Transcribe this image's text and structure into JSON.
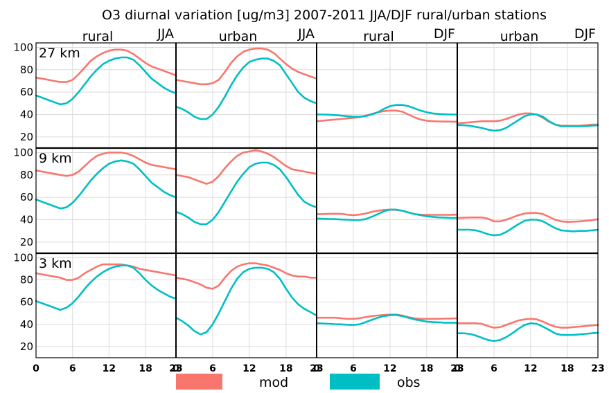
{
  "title": "O3 diurnal variation [ug/m3] 2007-2011 JJA/DJF rural/urban stations",
  "columns": [
    {
      "station": "rural",
      "season": "JJA"
    },
    {
      "station": "urban",
      "season": "JJA"
    },
    {
      "station": "rural",
      "season": "DJF"
    },
    {
      "station": "urban",
      "season": "DJF"
    }
  ],
  "rows": [
    "27 km",
    "9 km",
    "3 km"
  ],
  "colors": {
    "mod": "#f8766d",
    "obs": "#00bfc4"
  },
  "legend": [
    {
      "key": "mod",
      "label": "mod"
    },
    {
      "key": "obs",
      "label": "obs"
    }
  ],
  "chart_data": {
    "type": "line",
    "title": "O3 diurnal variation [ug/m3] 2007-2011 JJA/DJF rural/urban stations",
    "x": [
      0,
      1,
      2,
      3,
      4,
      5,
      6,
      7,
      8,
      9,
      10,
      11,
      12,
      13,
      14,
      15,
      16,
      17,
      18,
      19,
      20,
      21,
      22,
      23
    ],
    "xlim": [
      0,
      23
    ],
    "ylim": [
      10,
      104
    ],
    "x_ticks": [
      0,
      6,
      12,
      18,
      23
    ],
    "y_ticks": [
      20,
      40,
      60,
      80,
      100
    ],
    "grid": true,
    "legend_position": "bottom",
    "panels": [
      {
        "row": "27 km",
        "station": "rural",
        "season": "JJA",
        "mod": [
          73,
          72,
          71,
          70,
          69,
          69,
          71,
          76,
          82,
          88,
          92,
          95,
          97,
          98,
          98,
          97,
          94,
          90,
          86,
          83,
          81,
          79,
          77,
          75
        ],
        "obs": [
          57,
          55,
          53,
          51,
          49,
          50,
          54,
          60,
          67,
          74,
          80,
          85,
          88,
          90,
          91,
          91,
          89,
          84,
          78,
          72,
          68,
          64,
          61,
          59
        ]
      },
      {
        "row": "27 km",
        "station": "urban",
        "season": "JJA",
        "mod": [
          71,
          70,
          69,
          68,
          67,
          67,
          68,
          71,
          78,
          86,
          92,
          96,
          98,
          99,
          99,
          98,
          95,
          90,
          85,
          81,
          78,
          76,
          74,
          72
        ],
        "obs": [
          47,
          45,
          42,
          38,
          36,
          36,
          40,
          47,
          56,
          66,
          75,
          82,
          87,
          89,
          90,
          90,
          88,
          84,
          76,
          68,
          60,
          55,
          52,
          50
        ],
        "obs_label": "obs"
      },
      {
        "row": "27 km",
        "station": "rural",
        "season": "DJF",
        "mod": [
          34,
          34.5,
          35,
          35.5,
          36,
          36.5,
          37,
          37.5,
          39,
          40.5,
          42,
          43,
          43.5,
          43.5,
          42.5,
          40,
          37.5,
          35.5,
          34.5,
          34,
          33.8,
          33.7,
          33.6,
          33.5
        ],
        "obs": [
          40,
          40,
          39.8,
          39.5,
          39,
          38.5,
          38,
          38,
          38.5,
          40,
          42,
          45,
          47.5,
          48.5,
          48.5,
          47.5,
          45.5,
          43.5,
          42,
          41,
          40.5,
          40.2,
          40,
          40
        ]
      },
      {
        "row": "27 km",
        "station": "urban",
        "season": "DJF",
        "mod": [
          32,
          32.5,
          33,
          33.5,
          34,
          34,
          34,
          34.5,
          36,
          38,
          40,
          41,
          41,
          40,
          37,
          33.5,
          31,
          30,
          30,
          30,
          30,
          30.5,
          31,
          31
        ],
        "obs": [
          30.5,
          30.5,
          30,
          29,
          28,
          26.5,
          25.5,
          26,
          28,
          31.5,
          35,
          38.5,
          40,
          40,
          38,
          34,
          31,
          29.5,
          29.5,
          29.5,
          29.5,
          29.5,
          30,
          30.5
        ]
      },
      {
        "row": "9 km",
        "station": "rural",
        "season": "JJA",
        "mod": [
          84,
          83,
          82,
          81,
          80,
          79,
          80,
          83,
          88,
          93,
          97,
          99,
          100,
          100,
          100,
          99,
          97,
          94,
          91,
          89,
          88,
          87,
          86,
          85
        ],
        "obs": [
          58,
          56,
          54,
          52,
          50,
          51,
          55,
          61,
          68,
          75,
          81,
          86,
          90,
          92,
          93,
          92,
          90,
          85,
          79,
          73,
          69,
          65,
          62,
          60
        ]
      },
      {
        "row": "9 km",
        "station": "urban",
        "season": "JJA",
        "mod": [
          80,
          79,
          78,
          76,
          74,
          72,
          74,
          79,
          86,
          92,
          97,
          100,
          101,
          102,
          101,
          99,
          96,
          92,
          88,
          85,
          84,
          83,
          82,
          81
        ],
        "obs": [
          47,
          45,
          42,
          38,
          36,
          36,
          40,
          47,
          56,
          65,
          74,
          81,
          87,
          90,
          91,
          91,
          89,
          85,
          78,
          70,
          62,
          56,
          53,
          51
        ]
      },
      {
        "row": "9 km",
        "station": "rural",
        "season": "DJF",
        "mod": [
          45,
          45,
          45.2,
          45.3,
          45.2,
          44.5,
          44,
          44.5,
          45.5,
          47,
          48,
          48.7,
          49,
          48.8,
          48,
          46.5,
          45,
          44.5,
          44.3,
          44.3,
          44.3,
          44.3,
          44.4,
          44.5
        ],
        "obs": [
          41,
          40.8,
          40.6,
          40.5,
          40.2,
          40,
          39.7,
          39.7,
          40.5,
          42.5,
          45,
          47.5,
          49,
          49,
          48,
          46.5,
          45,
          44,
          43,
          42.5,
          42,
          41.8,
          41.5,
          41.5
        ]
      },
      {
        "row": "9 km",
        "station": "urban",
        "season": "DJF",
        "mod": [
          41.5,
          41.7,
          42,
          42,
          42,
          41,
          38.5,
          38.5,
          40,
          42,
          44,
          45.5,
          46,
          46,
          45,
          42.5,
          40,
          38.5,
          38,
          38.2,
          38.5,
          39,
          39.5,
          40.5
        ],
        "obs": [
          31,
          31,
          31,
          30.5,
          29,
          27,
          26,
          26.5,
          29,
          32.5,
          36,
          39,
          40,
          40,
          38.5,
          35.5,
          32.5,
          30.5,
          30,
          29.5,
          30,
          30,
          30.5,
          31
        ]
      },
      {
        "row": "3 km",
        "station": "rural",
        "season": "JJA",
        "mod": [
          86,
          85,
          84,
          83,
          82,
          80,
          80,
          82,
          86,
          89,
          92,
          94,
          94,
          94,
          94,
          93,
          92,
          90,
          89,
          88,
          87,
          86,
          85,
          84
        ],
        "obs": [
          61,
          59,
          57,
          55,
          53,
          55,
          59,
          65,
          72,
          78,
          83,
          87,
          90,
          92,
          93,
          93,
          91,
          86,
          80,
          75,
          71,
          68,
          65,
          63
        ]
      },
      {
        "row": "3 km",
        "station": "urban",
        "season": "JJA",
        "mod": [
          82,
          81,
          80,
          78,
          76,
          73,
          72,
          75,
          82,
          88,
          92,
          94,
          95,
          95,
          94,
          93,
          91,
          89,
          86,
          84,
          83,
          83,
          82,
          82
        ],
        "obs": [
          46,
          43,
          39,
          34,
          31,
          33,
          40,
          50,
          61,
          72,
          81,
          87,
          90,
          91,
          91,
          90,
          87,
          81,
          72,
          64,
          58,
          54,
          51,
          48
        ]
      },
      {
        "row": "3 km",
        "station": "rural",
        "season": "DJF",
        "mod": [
          46,
          46,
          46,
          46,
          45.5,
          45,
          45,
          45.5,
          46.5,
          47.5,
          48,
          48.5,
          48.8,
          48.8,
          48,
          46.5,
          45.5,
          45,
          45,
          45,
          45,
          45.2,
          45.3,
          45.5
        ],
        "obs": [
          41,
          40.8,
          40.5,
          40.2,
          40,
          39.7,
          39.5,
          40,
          42,
          44,
          46,
          47.5,
          48.2,
          48.5,
          47.5,
          46,
          44.5,
          43.5,
          42.5,
          42,
          41.8,
          41.5,
          41.5,
          41.5
        ]
      },
      {
        "row": "3 km",
        "station": "urban",
        "season": "DJF",
        "mod": [
          41,
          41,
          41,
          41,
          40.5,
          38.5,
          37,
          37.5,
          39.5,
          41.5,
          43.5,
          44.5,
          45,
          44.5,
          42.5,
          40,
          38,
          37,
          37,
          37.5,
          38,
          38.5,
          39,
          39.5
        ],
        "obs": [
          32,
          32,
          31.5,
          30,
          28,
          26,
          25,
          26,
          28.5,
          32,
          36,
          39.5,
          41,
          40.5,
          38,
          35,
          32,
          30.5,
          30.5,
          30.5,
          31,
          31.5,
          32,
          32.5
        ]
      }
    ]
  }
}
